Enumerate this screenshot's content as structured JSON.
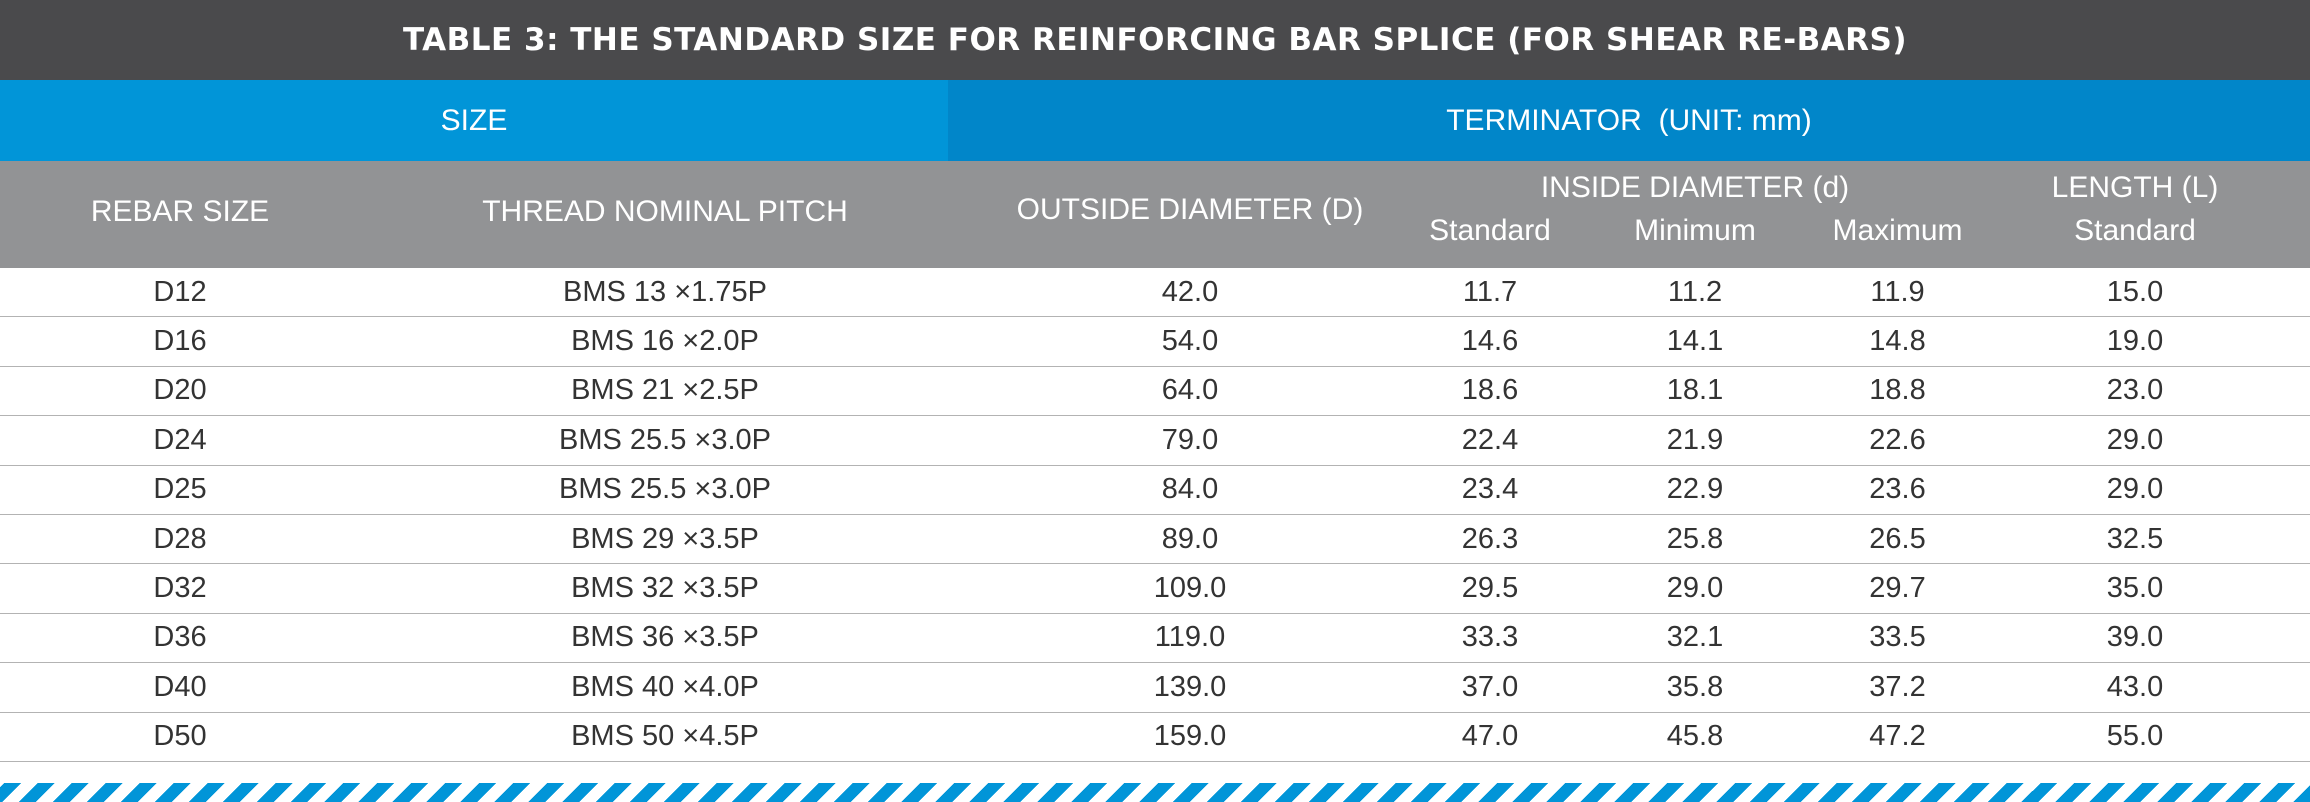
{
  "title": "TABLE 3: THE STANDARD SIZE FOR REINFORCING BAR SPLICE (FOR SHEAR RE-BARS)",
  "groups": {
    "size": "SIZE",
    "terminator": "TERMINATOR  (UNIT: mm)"
  },
  "headers": {
    "rebar_size": "REBAR SIZE",
    "thread_pitch": "THREAD NOMINAL PITCH",
    "outside_diameter": "OUTSIDE DIAMETER (D)",
    "inside_diameter": "INSIDE DIAMETER (d)",
    "inside_standard": "Standard",
    "inside_minimum": "Minimum",
    "inside_maximum": "Maximum",
    "length": "LENGTH (L)",
    "length_standard": "Standard"
  },
  "rows": [
    [
      "D12",
      "BMS 13 ×1.75P",
      "42.0",
      "11.7",
      "11.2",
      "11.9",
      "15.0"
    ],
    [
      "D16",
      "BMS 16 ×2.0P",
      "54.0",
      "14.6",
      "14.1",
      "14.8",
      "19.0"
    ],
    [
      "D20",
      "BMS 21 ×2.5P",
      "64.0",
      "18.6",
      "18.1",
      "18.8",
      "23.0"
    ],
    [
      "D24",
      "BMS 25.5 ×3.0P",
      "79.0",
      "22.4",
      "21.9",
      "22.6",
      "29.0"
    ],
    [
      "D25",
      "BMS 25.5 ×3.0P",
      "84.0",
      "23.4",
      "22.9",
      "23.6",
      "29.0"
    ],
    [
      "D28",
      "BMS 29 ×3.5P",
      "89.0",
      "26.3",
      "25.8",
      "26.5",
      "32.5"
    ],
    [
      "D32",
      "BMS 32 ×3.5P",
      "109.0",
      "29.5",
      "29.0",
      "29.7",
      "35.0"
    ],
    [
      "D36",
      "BMS 36 ×3.5P",
      "119.0",
      "33.3",
      "32.1",
      "33.5",
      "39.0"
    ],
    [
      "D40",
      "BMS 40 ×4.0P",
      "139.0",
      "37.0",
      "35.8",
      "37.2",
      "43.0"
    ],
    [
      "D50",
      "BMS 50 ×4.5P",
      "159.0",
      "47.0",
      "45.8",
      "47.2",
      "55.0"
    ]
  ],
  "colors": {
    "title_bg": "#4a4a4c",
    "size_bg": "#0195d8",
    "terminator_bg": "#0186c9",
    "header_bg": "#929395",
    "stripe": "#0195d8"
  }
}
